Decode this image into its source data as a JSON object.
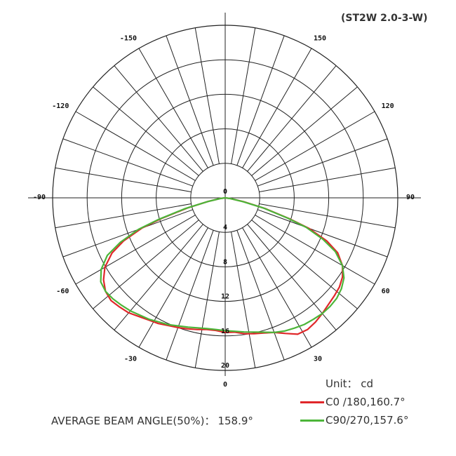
{
  "header": {
    "model": "(ST2W 2.0-3-W)"
  },
  "legend": {
    "unit": "Unit： cd",
    "items": [
      {
        "label": "C0  /180,160.7°",
        "color": "#e0272a"
      },
      {
        "label": "C90/270,157.6°",
        "color": "#4cb539"
      }
    ]
  },
  "footer": {
    "beam_label": "AVERAGE BEAM ANGLE(50%)：",
    "beam_value": "158.9°"
  },
  "chart_data": {
    "type": "polar",
    "radial_max": 20,
    "radial_ticks": [
      "0",
      "4",
      "8",
      "12",
      "16",
      "20"
    ],
    "angle_tick_labels": [
      {
        "angle": 0,
        "text": "0"
      },
      {
        "angle": 30,
        "text": "30"
      },
      {
        "angle": 60,
        "text": "60"
      },
      {
        "angle": 90,
        "text": "90"
      },
      {
        "angle": 120,
        "text": "120"
      },
      {
        "angle": 150,
        "text": "150"
      },
      {
        "angle": -30,
        "text": "-30"
      },
      {
        "angle": -60,
        "text": "-60"
      },
      {
        "angle": -90,
        "text": "-90"
      },
      {
        "angle": -120,
        "text": "-120"
      },
      {
        "angle": -150,
        "text": "-150"
      }
    ],
    "series": [
      {
        "name": "C0 /180,160.7°",
        "color": "#e0272a",
        "points": [
          [
            -82,
            0.6
          ],
          [
            -78,
            2.0
          ],
          [
            -75,
            4.5
          ],
          [
            -72,
            7.8
          ],
          [
            -70,
            10.3
          ],
          [
            -67,
            12.8
          ],
          [
            -64,
            14.6
          ],
          [
            -60,
            16.1
          ],
          [
            -56,
            17.0
          ],
          [
            -52,
            17.6
          ],
          [
            -48,
            17.8
          ],
          [
            -44,
            17.6
          ],
          [
            -40,
            17.4
          ],
          [
            -36,
            17.0
          ],
          [
            -32,
            16.7
          ],
          [
            -28,
            16.5
          ],
          [
            -24,
            16.2
          ],
          [
            -20,
            16.0
          ],
          [
            -16,
            15.8
          ],
          [
            -12,
            15.6
          ],
          [
            -8,
            15.4
          ],
          [
            -4,
            15.4
          ],
          [
            0,
            15.6
          ],
          [
            4,
            15.6
          ],
          [
            8,
            15.9
          ],
          [
            12,
            16.1
          ],
          [
            16,
            16.3
          ],
          [
            20,
            16.6
          ],
          [
            24,
            17.2
          ],
          [
            28,
            17.9
          ],
          [
            32,
            18.0
          ],
          [
            36,
            17.8
          ],
          [
            40,
            17.5
          ],
          [
            44,
            17.2
          ],
          [
            48,
            17.0
          ],
          [
            52,
            16.8
          ],
          [
            56,
            16.4
          ],
          [
            60,
            15.7
          ],
          [
            64,
            14.5
          ],
          [
            67,
            12.8
          ],
          [
            70,
            10.3
          ],
          [
            72,
            7.8
          ],
          [
            75,
            4.8
          ],
          [
            78,
            2.2
          ],
          [
            82,
            0.6
          ]
        ]
      },
      {
        "name": "C90/270,157.6°",
        "color": "#4cb539",
        "points": [
          [
            -82,
            0.6
          ],
          [
            -78,
            2.1
          ],
          [
            -75,
            4.8
          ],
          [
            -72,
            8.2
          ],
          [
            -70,
            10.7
          ],
          [
            -67,
            13.2
          ],
          [
            -64,
            15.2
          ],
          [
            -60,
            16.6
          ],
          [
            -56,
            17.4
          ],
          [
            -52,
            17.6
          ],
          [
            -48,
            17.5
          ],
          [
            -44,
            17.3
          ],
          [
            -40,
            17.1
          ],
          [
            -36,
            16.8
          ],
          [
            -32,
            16.6
          ],
          [
            -28,
            16.3
          ],
          [
            -24,
            16.1
          ],
          [
            -20,
            15.8
          ],
          [
            -16,
            15.6
          ],
          [
            -12,
            15.4
          ],
          [
            -8,
            15.3
          ],
          [
            -4,
            15.3
          ],
          [
            0,
            15.4
          ],
          [
            4,
            15.5
          ],
          [
            8,
            15.7
          ],
          [
            12,
            15.9
          ],
          [
            16,
            16.2
          ],
          [
            20,
            16.6
          ],
          [
            24,
            16.9
          ],
          [
            28,
            17.1
          ],
          [
            32,
            17.3
          ],
          [
            36,
            17.4
          ],
          [
            40,
            17.5
          ],
          [
            44,
            17.5
          ],
          [
            48,
            17.4
          ],
          [
            52,
            17.1
          ],
          [
            56,
            16.6
          ],
          [
            60,
            15.7
          ],
          [
            64,
            14.2
          ],
          [
            67,
            12.3
          ],
          [
            70,
            10.0
          ],
          [
            72,
            7.6
          ],
          [
            75,
            4.6
          ],
          [
            78,
            2.1
          ],
          [
            82,
            0.6
          ]
        ]
      }
    ]
  }
}
